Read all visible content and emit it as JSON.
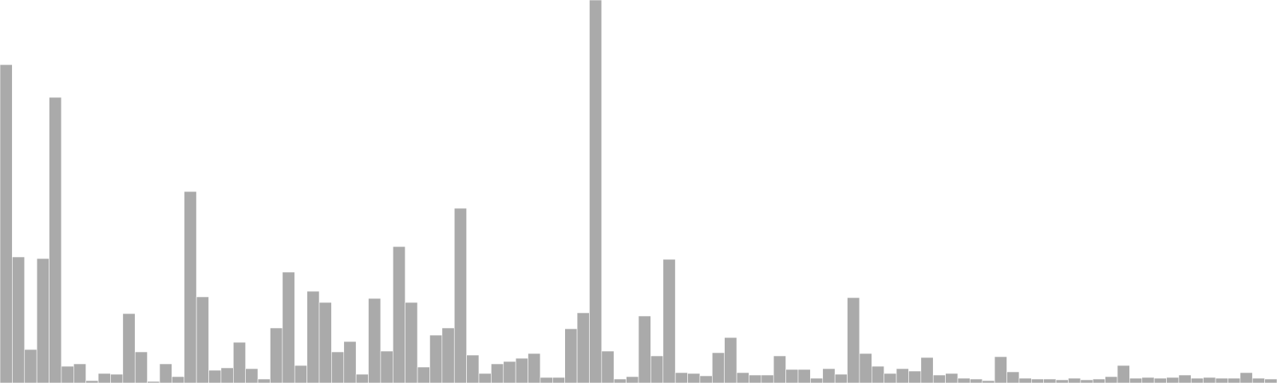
{
  "chart_data": {
    "type": "bar",
    "title": "",
    "xlabel": "",
    "ylabel": "",
    "ylim": [
      0,
      480
    ],
    "grid": false,
    "legend": "none",
    "bar_color": "#aaaaaa",
    "bar_edge_color": "#ffffff",
    "values": [
      399,
      158,
      42,
      156,
      358,
      21,
      24,
      3,
      12,
      11,
      87,
      39,
      2,
      24,
      8,
      240,
      108,
      16,
      19,
      51,
      18,
      5,
      69,
      139,
      22,
      115,
      101,
      39,
      52,
      11,
      106,
      40,
      171,
      101,
      20,
      60,
      69,
      219,
      35,
      12,
      24,
      27,
      31,
      37,
      7,
      7,
      68,
      88,
      480,
      40,
      5,
      8,
      84,
      34,
      155,
      13,
      12,
      9,
      38,
      57,
      13,
      10,
      10,
      34,
      17,
      17,
      6,
      18,
      11,
      107,
      37,
      21,
      12,
      18,
      15,
      32,
      10,
      12,
      6,
      5,
      3,
      33,
      14,
      6,
      5,
      5,
      4,
      6,
      4,
      5,
      8,
      22,
      6,
      7,
      6,
      7,
      10,
      6,
      7,
      6,
      6,
      13,
      6,
      5
    ]
  }
}
